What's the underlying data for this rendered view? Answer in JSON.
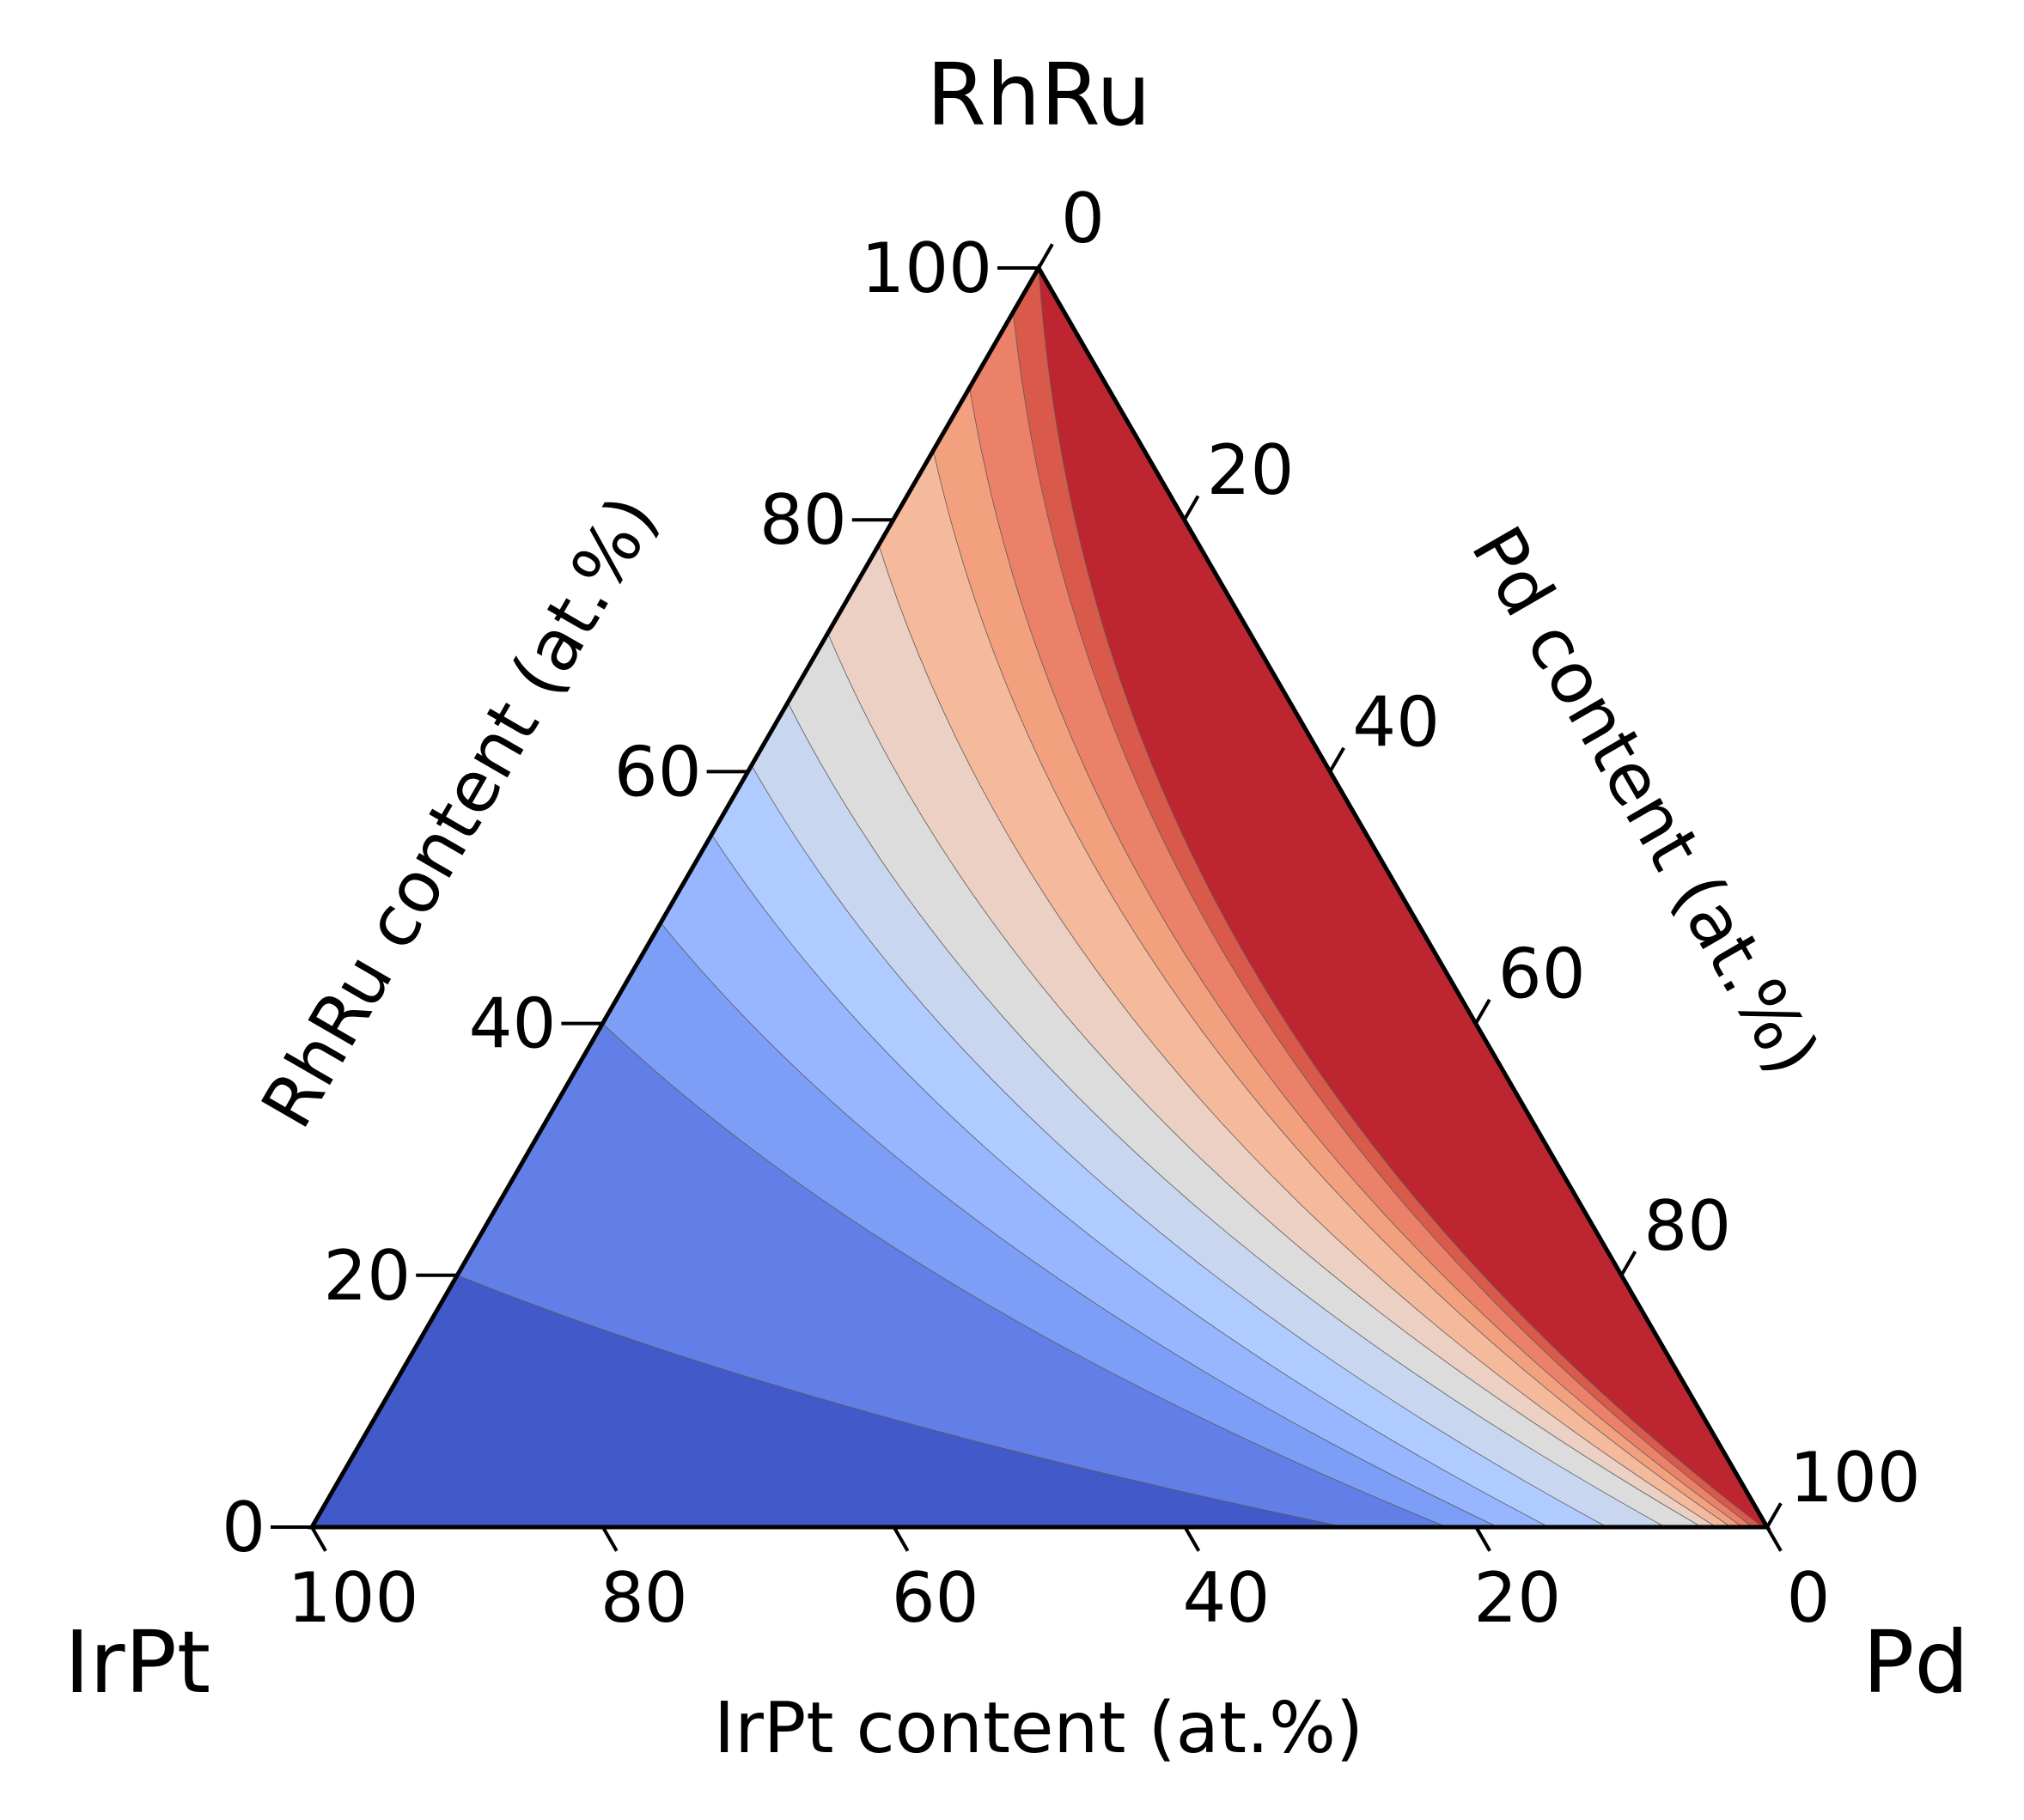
{
  "chart_data": {
    "type": "ternary-contour",
    "corners": {
      "top": "RhRu",
      "left": "IrPt",
      "right": "Pd"
    },
    "axes": {
      "left": {
        "label": "RhRu content (at.%)",
        "ticks": [
          "0",
          "20",
          "40",
          "60",
          "80",
          "100"
        ]
      },
      "right": {
        "label": "Pd content (at.%)",
        "ticks": [
          "0",
          "20",
          "40",
          "60",
          "80",
          "100"
        ]
      },
      "bottom": {
        "label": "IrPt content (at.%)",
        "ticks": [
          "100",
          "80",
          "60",
          "40",
          "20",
          "0"
        ]
      }
    },
    "colormap": [
      "#4259c9",
      "#617fe6",
      "#7d9ef6",
      "#97b6ff",
      "#b0cbff",
      "#c8d6ef",
      "#dcdcdc",
      "#ebd0c3",
      "#f5b99c",
      "#f3a07f",
      "#eb8168",
      "#d95a4a",
      "#bd2630"
    ],
    "levels": 13,
    "grid": false,
    "legend": "none"
  }
}
